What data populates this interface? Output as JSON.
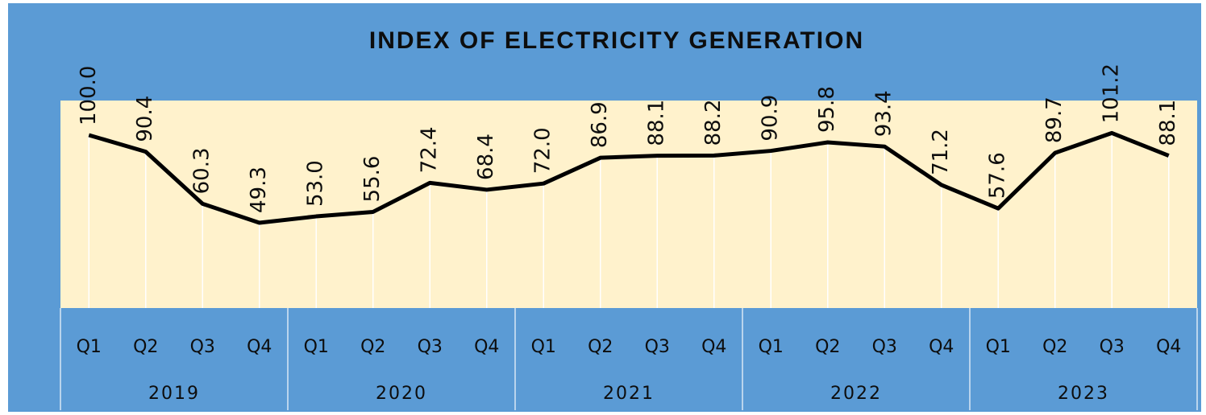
{
  "chart_data": {
    "type": "line",
    "title": "INDEX OF ELECTRICITY GENERATION",
    "categories": [
      "Q1",
      "Q2",
      "Q3",
      "Q4",
      "Q1",
      "Q2",
      "Q3",
      "Q4",
      "Q1",
      "Q2",
      "Q3",
      "Q4",
      "Q1",
      "Q2",
      "Q3",
      "Q4",
      "Q1",
      "Q2",
      "Q3",
      "Q4"
    ],
    "groups": [
      "2019",
      "2020",
      "2021",
      "2022",
      "2023"
    ],
    "values": [
      100.0,
      90.4,
      60.3,
      49.3,
      53.0,
      55.6,
      72.4,
      68.4,
      72.0,
      86.9,
      88.1,
      88.2,
      90.9,
      95.8,
      93.4,
      71.2,
      57.6,
      89.7,
      101.2,
      88.1
    ],
    "value_labels": [
      "100.0",
      "90.4",
      "60.3",
      "49.3",
      "53.0",
      "55.6",
      "72.4",
      "68.4",
      "72.0",
      "86.9",
      "88.1",
      "88.2",
      "90.9",
      "95.8",
      "93.4",
      "71.2",
      "57.6",
      "89.7",
      "101.2",
      "88.1"
    ],
    "color": "#000000",
    "ylim": [
      0,
      120
    ]
  }
}
